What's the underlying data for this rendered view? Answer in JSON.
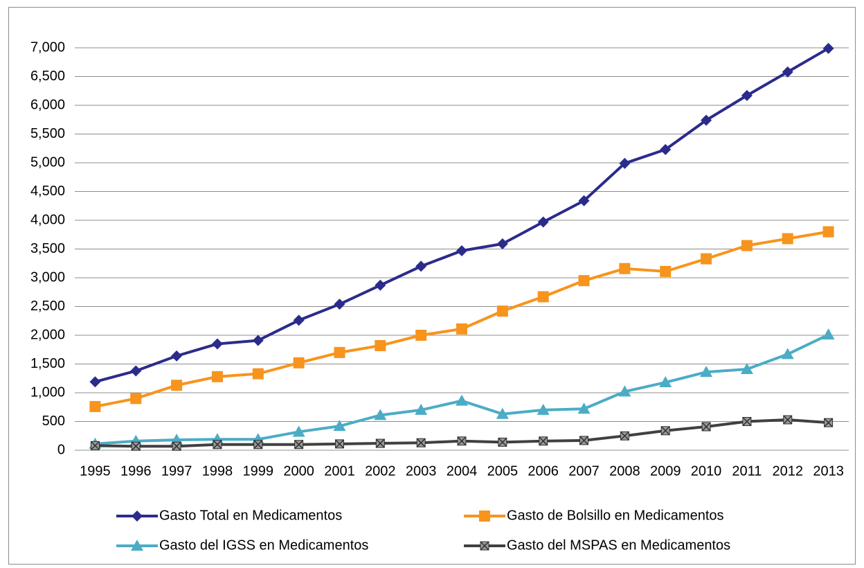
{
  "chart_data": {
    "type": "line",
    "categories": [
      "1995",
      "1996",
      "1997",
      "1998",
      "1999",
      "2000",
      "2001",
      "2002",
      "2003",
      "2004",
      "2005",
      "2006",
      "2007",
      "2008",
      "2009",
      "2010",
      "2011",
      "2012",
      "2013"
    ],
    "series": [
      {
        "name": "Gasto Total en Medicamentos",
        "color": "#2b2b8c",
        "marker": "diamond",
        "values": [
          1190,
          1380,
          1640,
          1850,
          1910,
          2260,
          2540,
          2870,
          3200,
          3470,
          3590,
          3970,
          4340,
          4990,
          5230,
          5740,
          6170,
          6580,
          6990
        ]
      },
      {
        "name": "Gasto de Bolsillo en Medicamentos",
        "color": "#f7941d",
        "marker": "square",
        "values": [
          760,
          900,
          1130,
          1280,
          1330,
          1520,
          1700,
          1820,
          2000,
          2110,
          2420,
          2670,
          2950,
          3160,
          3110,
          3330,
          3560,
          3680,
          3800
        ]
      },
      {
        "name": "Gasto del IGSS en Medicamentos",
        "color": "#4bacc6",
        "marker": "triangle",
        "values": [
          110,
          160,
          180,
          190,
          190,
          320,
          420,
          610,
          700,
          860,
          630,
          700,
          720,
          1020,
          1180,
          1360,
          1410,
          1670,
          2010
        ]
      },
      {
        "name": "Gasto del MSPAS en Medicamentos",
        "color": "#404040",
        "marker": "xsquare",
        "values": [
          80,
          70,
          70,
          100,
          100,
          100,
          110,
          120,
          130,
          160,
          140,
          160,
          170,
          250,
          340,
          410,
          500,
          530,
          480
        ]
      }
    ],
    "ylim": [
      0,
      7000
    ],
    "yticks": [
      0,
      500,
      {
        "value": 1000,
        "label": "1,000"
      },
      {
        "value": 1500,
        "label": "1,500"
      },
      {
        "value": 2000,
        "label": "2,000"
      },
      {
        "value": 2500,
        "label": "2,500"
      },
      {
        "value": 3000,
        "label": "3,000"
      },
      {
        "value": 3500,
        "label": "3,500"
      },
      {
        "value": 4000,
        "label": "4,000"
      },
      {
        "value": 4500,
        "label": "4,500"
      },
      {
        "value": 5000,
        "label": "5,000"
      },
      {
        "value": 5500,
        "label": "5,500"
      },
      {
        "value": 6000,
        "label": "6,000"
      },
      {
        "value": 6500,
        "label": "6,500"
      },
      {
        "value": 7000,
        "label": "7,000"
      }
    ],
    "grid": true,
    "legend": "bottom"
  }
}
